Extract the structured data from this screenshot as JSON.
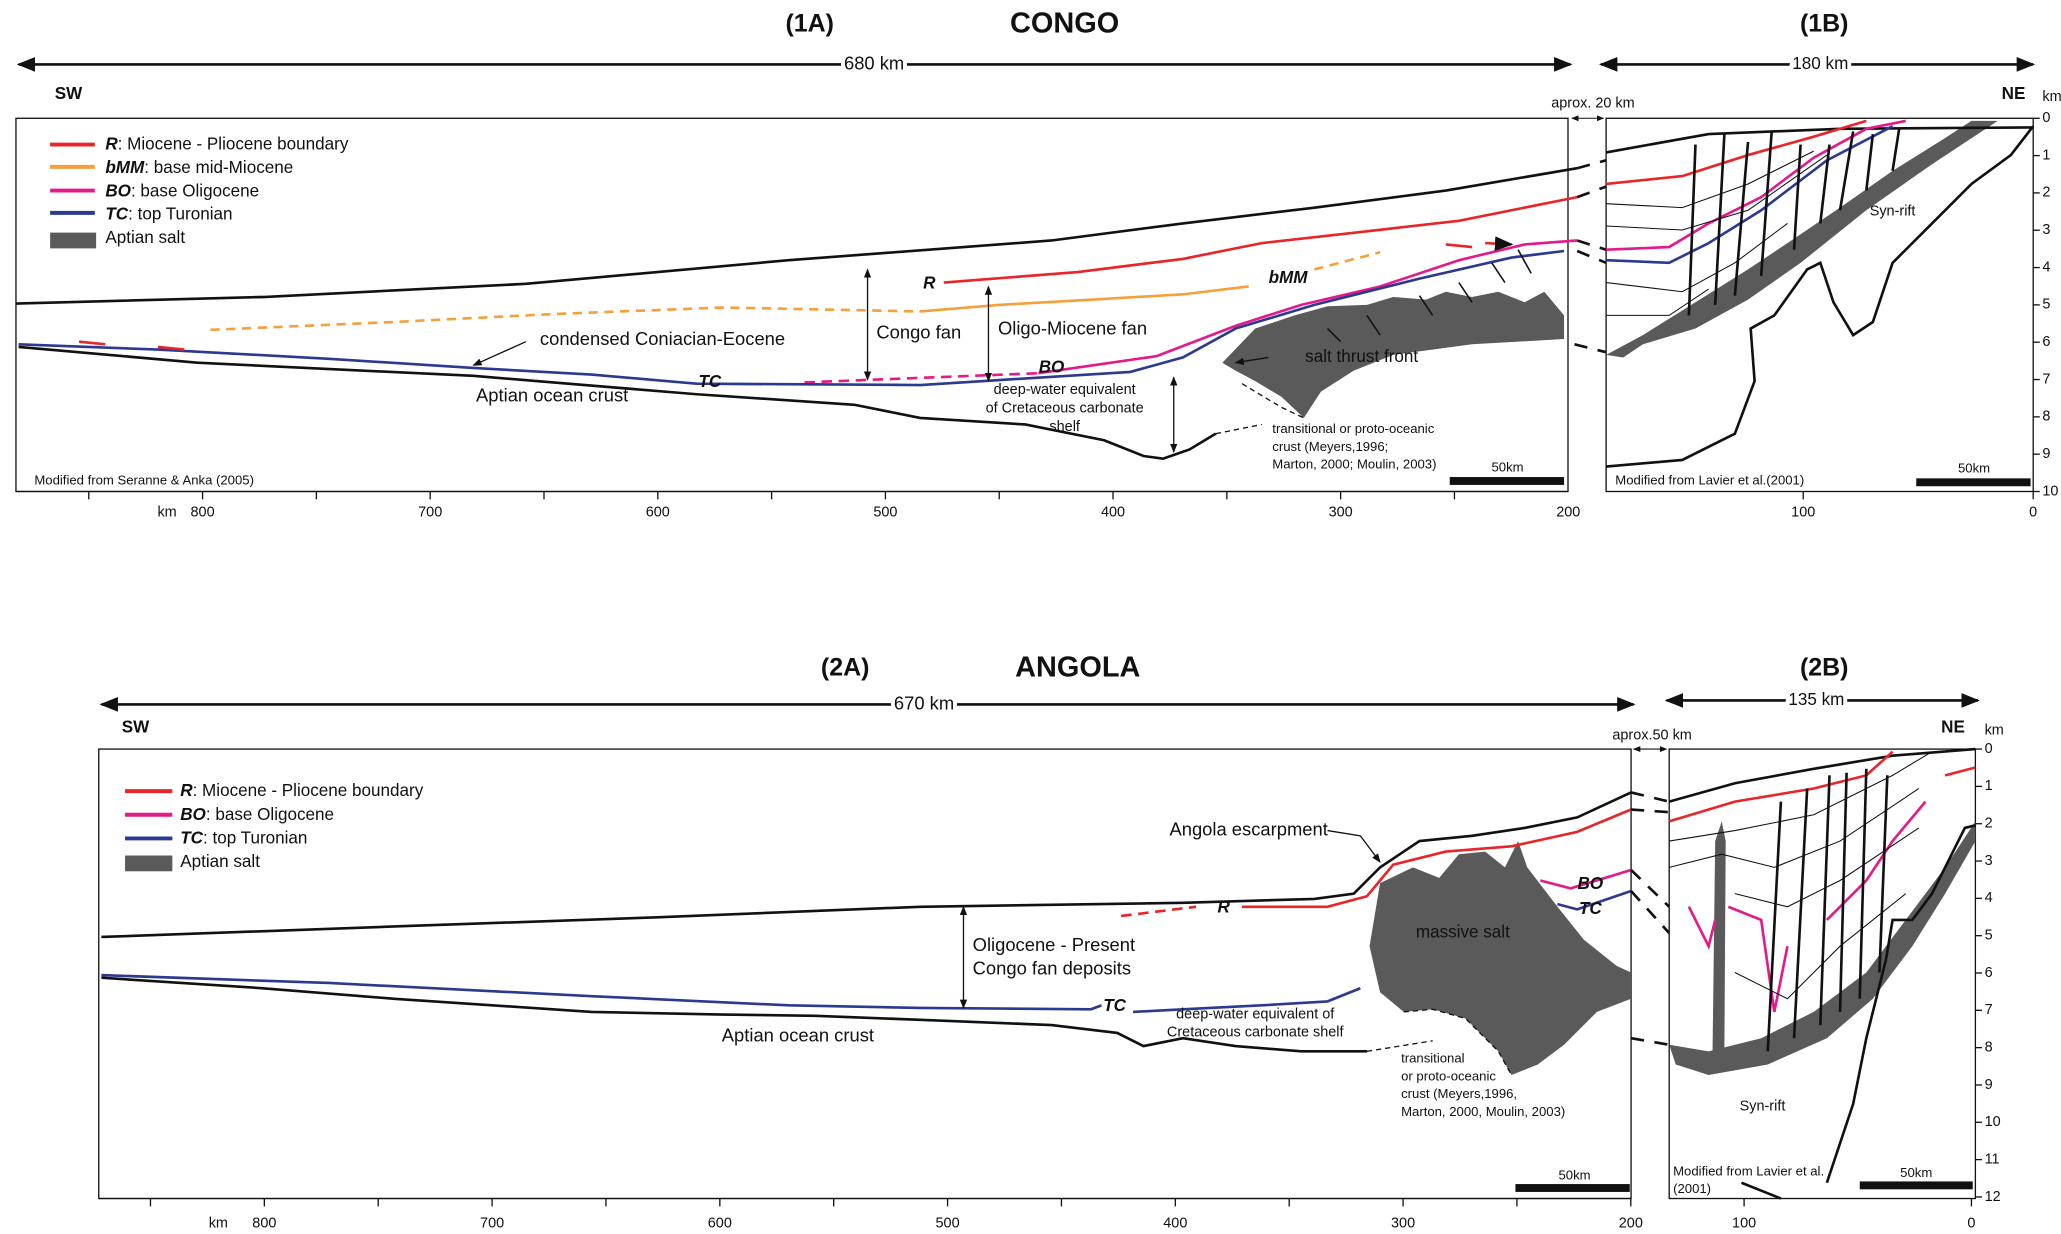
{
  "congo": {
    "title": "CONGO",
    "panel_a": "(1A)",
    "panel_b": "(1B)",
    "width_a": "680 km",
    "width_b": "180 km",
    "gap": "aprox. 20 km",
    "sw": "SW",
    "ne": "NE",
    "depth_unit": "km",
    "legend": [
      {
        "key": "R",
        "text": ":  Miocene - Pliocene boundary"
      },
      {
        "key": "bMM",
        "text": ":  base mid-Miocene"
      },
      {
        "key": "BO",
        "text": ": base Oligocene"
      },
      {
        "key": "TC",
        "text": ":  top Turonian"
      },
      {
        "key": "",
        "text": "Aptian salt"
      }
    ],
    "labels": {
      "r": "R",
      "bmm": "bMM",
      "congo_fan": "Congo fan",
      "oligo_miocene_fan": "Oligo-Miocene fan",
      "bo": "BO",
      "tc": "TC",
      "condensed": "condensed Coniacian-Eocene",
      "crust": "Aptian ocean crust",
      "deep_water": [
        "deep-water equivalent",
        "of Cretaceous carbonate",
        "shelf"
      ],
      "salt_front": "salt thrust front",
      "transitional": [
        "transitional or proto-oceanic",
        "crust (Meyers,1996;",
        "Marton, 2000; Moulin, 2003)"
      ],
      "syn_rift": "Syn-rift"
    },
    "credit_a": "Modified  from Seranne & Anka (2005)",
    "credit_b": "Modified from Lavier et al.(2001)",
    "scale_a": "50km",
    "scale_b": "50km",
    "x_unit": "km",
    "x_ticks_a": [
      "800",
      "700",
      "600",
      "500",
      "400",
      "300",
      "200"
    ],
    "x_ticks_b": [
      "100",
      "0"
    ],
    "depth_ticks": [
      "0",
      "1",
      "2",
      "3",
      "4",
      "5",
      "6",
      "7",
      "8",
      "9",
      "10"
    ]
  },
  "angola": {
    "title": "ANGOLA",
    "panel_a": "(2A)",
    "panel_b": "(2B)",
    "width_a": "670 km",
    "width_b": "135 km",
    "gap": "aprox.50 km",
    "sw": "SW",
    "ne": "NE",
    "depth_unit": "km",
    "legend": [
      {
        "key": "R",
        "text": ":  Miocene - Pliocene boundary"
      },
      {
        "key": "BO",
        "text": ": base Oligocene"
      },
      {
        "key": "TC",
        "text": ":  top Turonian"
      },
      {
        "key": "",
        "text": "Aptian salt"
      }
    ],
    "labels": {
      "escarpment": "Angola escarpment",
      "r": "R",
      "bo": "BO",
      "tc_right": "TC",
      "massive_salt": "massive salt",
      "fan": [
        "Oligocene - Present",
        "Congo fan deposits"
      ],
      "tc": "TC",
      "deep_water": [
        "deep-water equivalent of",
        "Cretaceous carbonate shelf"
      ],
      "crust": "Aptian ocean crust",
      "transitional": [
        "transitional",
        "or proto-oceanic",
        "crust (Meyers,1996,",
        "Marton, 2000, Moulin, 2003)"
      ],
      "syn_rift": "Syn-rift"
    },
    "credit_b": [
      "Modified from Lavier et al.",
      "(2001)"
    ],
    "scale_a": "50km",
    "scale_b": "50km",
    "x_unit": "km",
    "x_ticks_a": [
      "800",
      "700",
      "600",
      "500",
      "400",
      "300",
      "200"
    ],
    "x_ticks_b": [
      "100",
      "0"
    ],
    "depth_ticks": [
      "0",
      "1",
      "2",
      "3",
      "4",
      "5",
      "6",
      "7",
      "8",
      "9",
      "10",
      "11",
      "12"
    ]
  }
}
